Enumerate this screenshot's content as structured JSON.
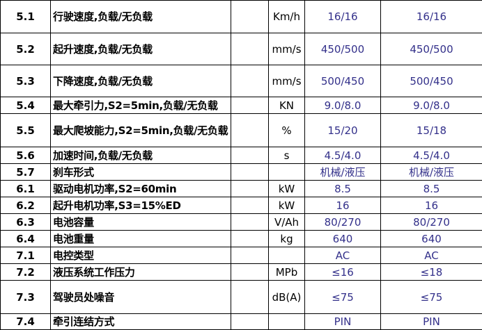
{
  "rows": [
    {
      "no": "5.1",
      "name": "行驶速度,负载/无负载",
      "unit": "Km/h",
      "v1": "16/16",
      "v2": "16/16"
    },
    {
      "no": "5.2",
      "name": "起升速度,负载/无负载",
      "unit": "mm/s",
      "v1": "450/500",
      "v2": "450/500"
    },
    {
      "no": "5.3",
      "name": "下降速度,负载/无负载",
      "unit": "mm/s",
      "v1": "500/450",
      "v2": "500/450"
    },
    {
      "no": "5.4",
      "name": "最大牵引力,S2=5min,负载/无负载",
      "unit": "KN",
      "v1": "9.0/8.0",
      "v2": "9.0/8.0"
    },
    {
      "no": "5.5",
      "name": "最大爬坡能力,S2=5min,负载/无负载",
      "unit": "%",
      "v1": "15/20",
      "v2": "15/18"
    },
    {
      "no": "5.6",
      "name": "加速时间,负载/无负载",
      "unit": "s",
      "v1": "4.5/4.0",
      "v2": "4.5/4.0"
    },
    {
      "no": "5.7",
      "name": "刹车形式",
      "unit": "",
      "v1": "机械/液压",
      "v2": "机械/液压"
    },
    {
      "no": "6.1",
      "name": "驱动电机功率,S2=60min",
      "unit": "kW",
      "v1": "8.5",
      "v2": "8.5"
    },
    {
      "no": "6.2",
      "name": "起升电机功率,S3=15%ED",
      "unit": "kW",
      "v1": "16",
      "v2": "16"
    },
    {
      "no": "6.3",
      "name": "电池容量",
      "unit": "V/Ah",
      "v1": "80/270",
      "v2": "80/270"
    },
    {
      "no": "6.4",
      "name": "电池重量",
      "unit": "kg",
      "v1": "640",
      "v2": "640"
    },
    {
      "no": "7.1",
      "name": "电控类型",
      "unit": "",
      "v1": "AC",
      "v2": "AC"
    },
    {
      "no": "7.2",
      "name": "液压系统工作压力",
      "unit": "MPb",
      "v1": "≤16",
      "v2": "≤18"
    },
    {
      "no": "7.3",
      "name": "驾驶员处噪音",
      "unit": "dB(A)",
      "v1": "≤75",
      "v2": "≤75"
    },
    {
      "no": "7.4",
      "name": "牵引连结方式",
      "unit": "",
      "v1": "PIN",
      "v2": "PIN"
    }
  ],
  "colors": {
    "value_text": "#33308a",
    "border": "#000000"
  }
}
